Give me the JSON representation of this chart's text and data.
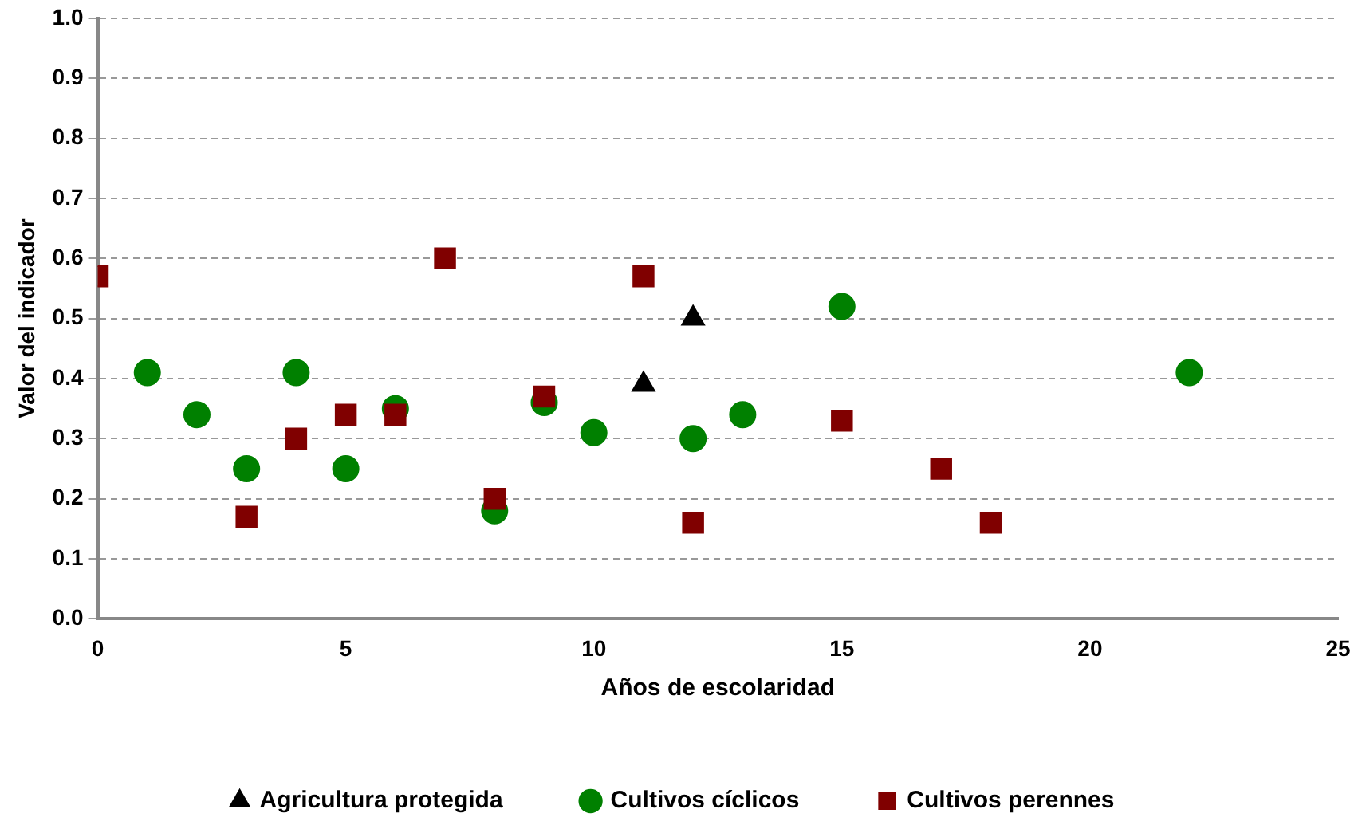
{
  "chart_data": {
    "type": "scatter",
    "xlabel": "Años de escolaridad",
    "ylabel": "Valor del indicador",
    "xlim": [
      0,
      25
    ],
    "xticks": [
      0,
      5,
      10,
      15,
      20,
      25
    ],
    "ylim": [
      0,
      1
    ],
    "yticks": [
      {
        "value": 0,
        "label": "0.0"
      },
      {
        "value": 0.1,
        "label": "0.1"
      },
      {
        "value": 0.2,
        "label": "0.2"
      },
      {
        "value": 0.3,
        "label": "0.3"
      },
      {
        "value": 0.4,
        "label": "0.4"
      },
      {
        "value": 0.5,
        "label": "0.5"
      },
      {
        "value": 0.6,
        "label": "0.6"
      },
      {
        "value": 0.7,
        "label": "0.7"
      },
      {
        "value": 0.8,
        "label": "0.8"
      },
      {
        "value": 0.9,
        "label": "0.9"
      },
      {
        "value": 1,
        "label": "1.0"
      }
    ],
    "grid": "y",
    "legend": "bottom",
    "series": [
      {
        "name": "Agricultura protegida",
        "color": "#000000",
        "marker": "triangle",
        "x": [
          11,
          12
        ],
        "values": [
          0.39,
          0.5
        ]
      },
      {
        "name": "Cultivos cíclicos",
        "color": "#008000",
        "marker": "circle",
        "x": [
          1,
          2,
          3,
          4,
          5,
          6,
          8,
          9,
          10,
          12,
          13,
          15,
          22
        ],
        "values": [
          0.41,
          0.34,
          0.25,
          0.41,
          0.25,
          0.35,
          0.18,
          0.36,
          0.31,
          0.3,
          0.34,
          0.52,
          0.41
        ]
      },
      {
        "name": "Cultivos perennes",
        "color": "#800000",
        "marker": "square",
        "x": [
          0,
          3,
          4,
          5,
          6,
          7,
          8,
          9,
          11,
          12,
          15,
          17,
          18
        ],
        "values": [
          0.57,
          0.17,
          0.3,
          0.34,
          0.34,
          0.6,
          0.2,
          0.37,
          0.57,
          0.16,
          0.33,
          0.25,
          0.16
        ]
      }
    ]
  }
}
